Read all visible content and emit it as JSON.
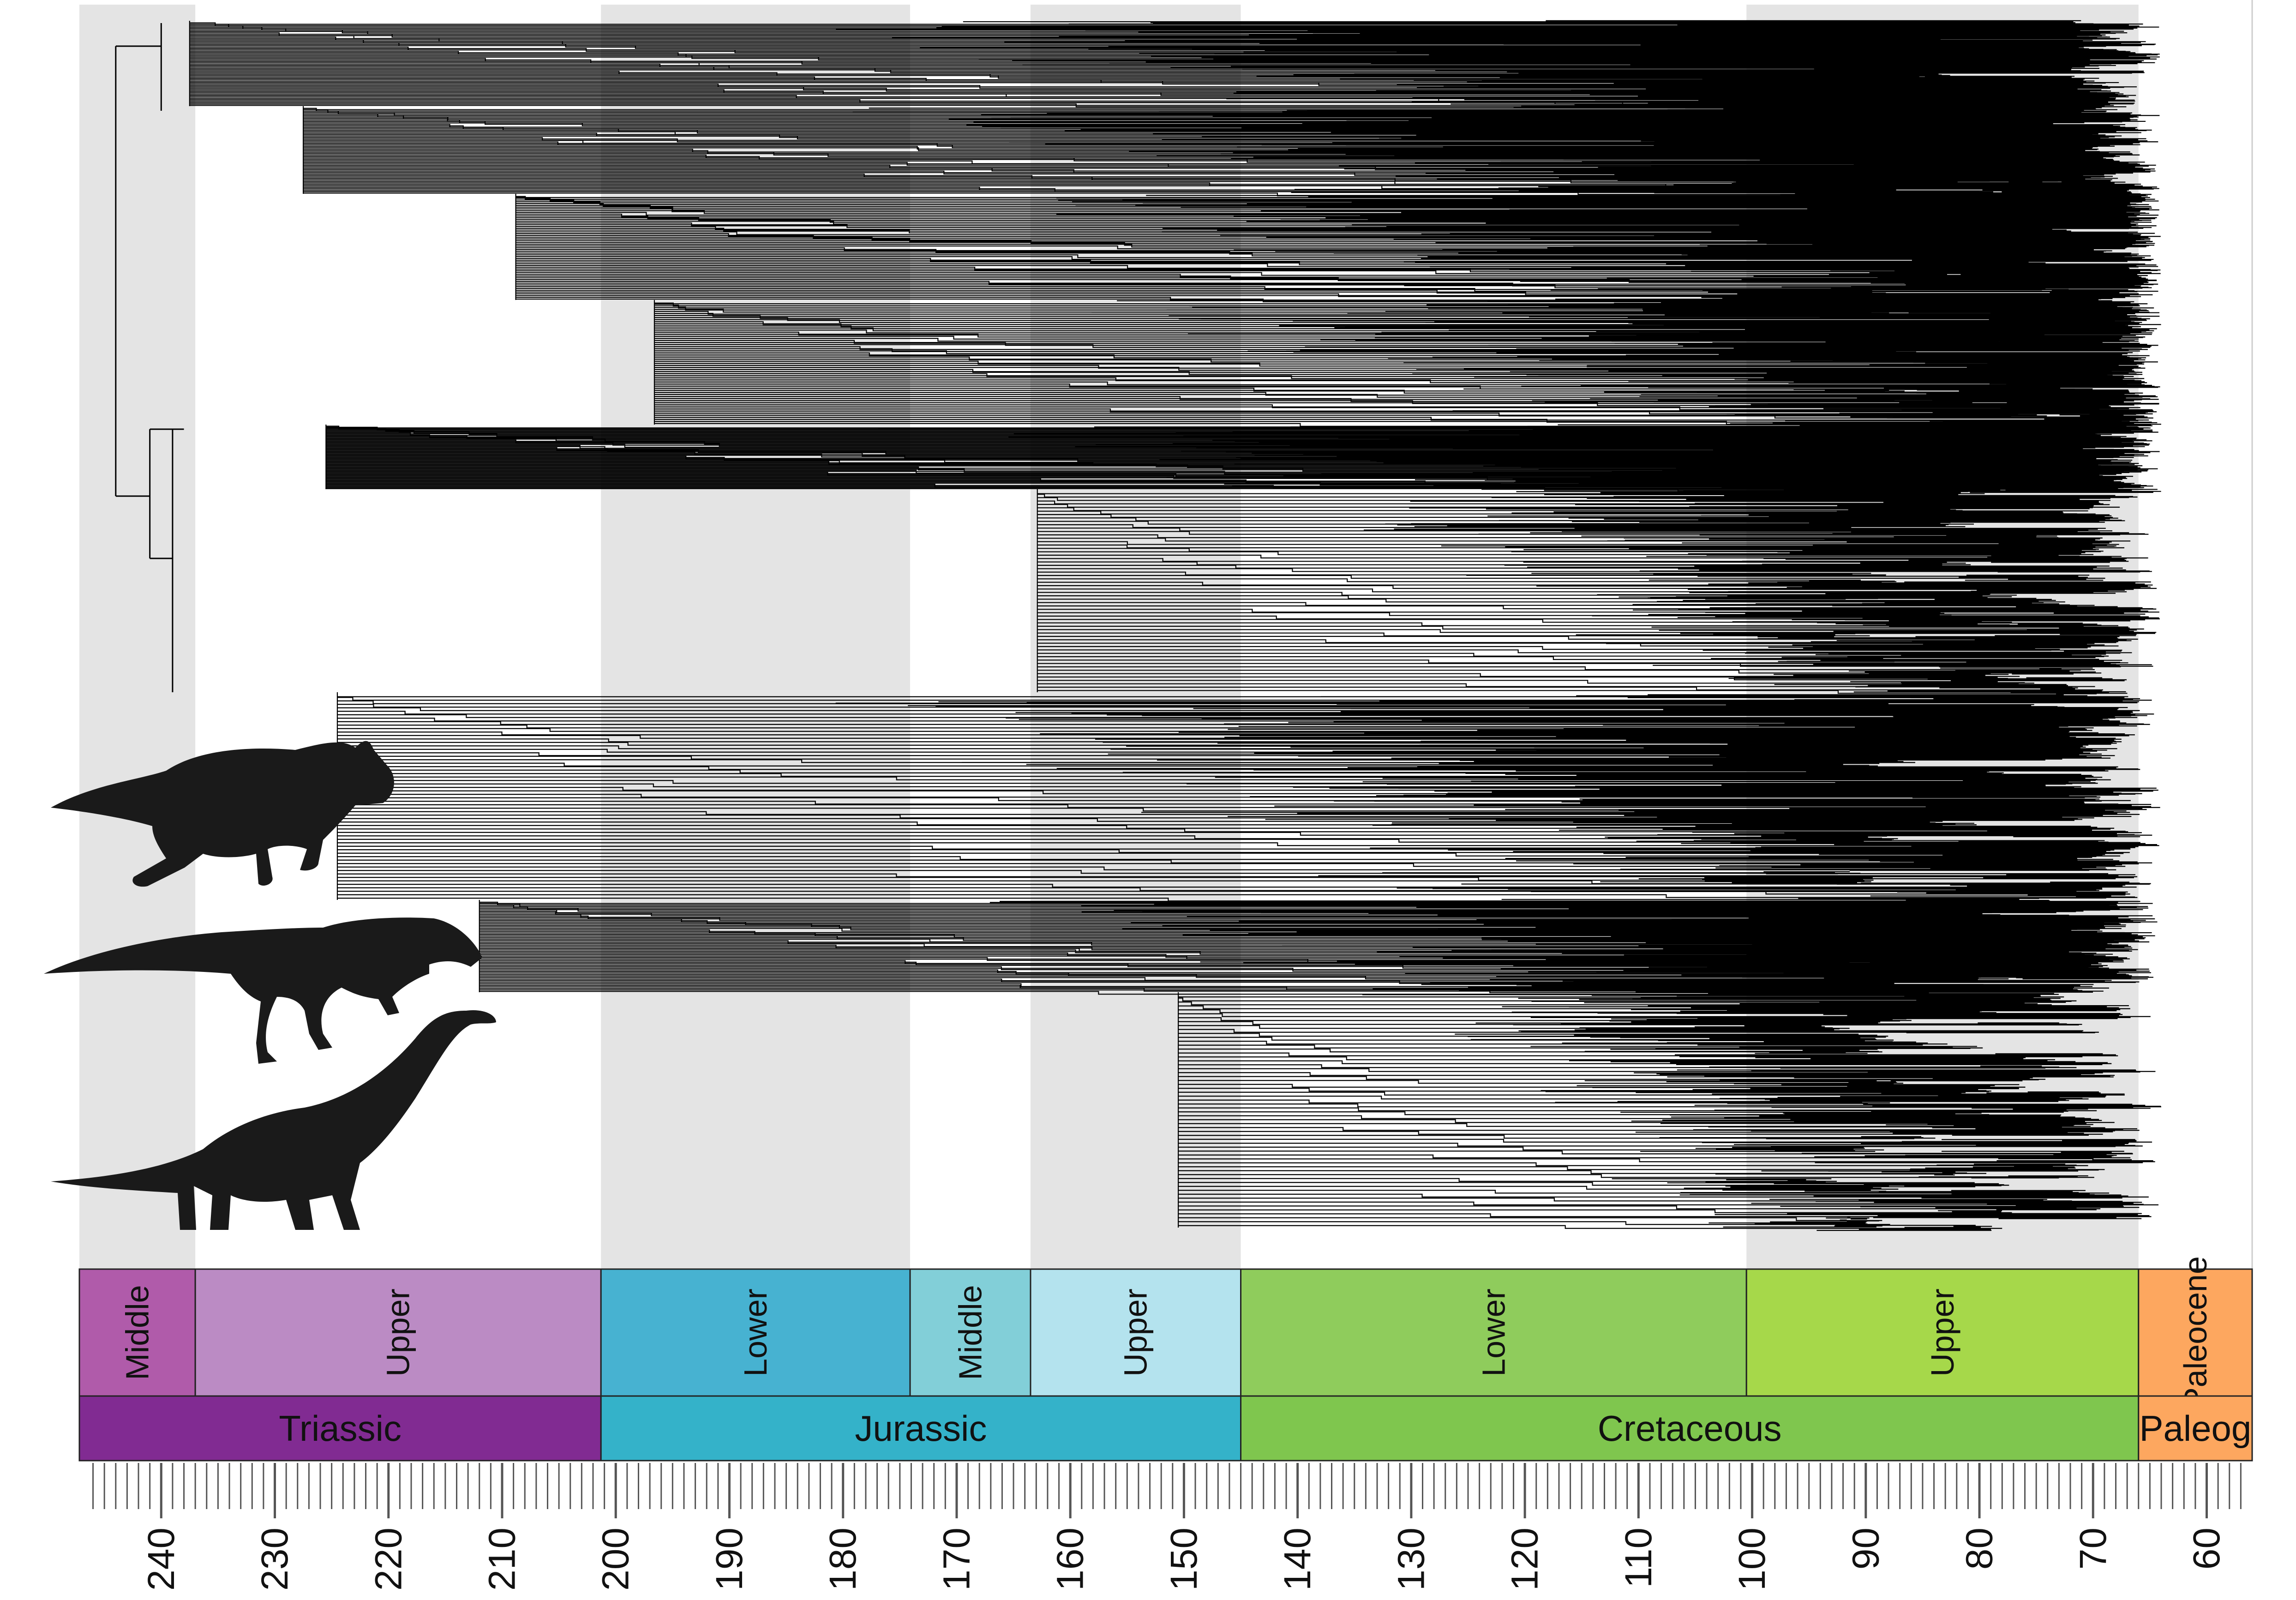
{
  "chart_data": {
    "type": "timescaled-phylogeny",
    "xlabel": "",
    "x_axis": {
      "reversed": true,
      "tick_labels": [
        "240",
        "230",
        "220",
        "210",
        "200",
        "190",
        "180",
        "170",
        "160",
        "150",
        "140",
        "130",
        "120",
        "110",
        "100",
        "90",
        "80",
        "70",
        "60"
      ],
      "ticks": [
        240,
        230,
        220,
        210,
        200,
        190,
        180,
        170,
        160,
        150,
        140,
        130,
        120,
        110,
        100,
        90,
        80,
        70,
        60
      ]
    },
    "xlim": [
      247,
      57
    ],
    "epochs": [
      {
        "label": "Middle",
        "start": 247.2,
        "end": 237.0,
        "color": "#B05BAA",
        "shade": true
      },
      {
        "label": "Upper",
        "start": 237.0,
        "end": 201.3,
        "color": "#BB8BC4",
        "shade": false
      },
      {
        "label": "Lower",
        "start": 201.3,
        "end": 174.1,
        "color": "#47B2D1",
        "shade": true
      },
      {
        "label": "Middle",
        "start": 174.1,
        "end": 163.5,
        "color": "#82CFD8",
        "shade": false
      },
      {
        "label": "Upper",
        "start": 163.5,
        "end": 145.0,
        "color": "#B4E3EE",
        "shade": true
      },
      {
        "label": "Lower",
        "start": 145.0,
        "end": 100.5,
        "color": "#8FCC5C",
        "shade": false
      },
      {
        "label": "Upper",
        "start": 100.5,
        "end": 66.0,
        "color": "#A6D84A",
        "shade": true
      },
      {
        "label": "Paleocene",
        "start": 66.0,
        "end": 56.0,
        "color": "#FDA75F",
        "shade": false
      }
    ],
    "periods": [
      {
        "label": "Triassic",
        "start": 247.2,
        "end": 201.3,
        "color": "#812B92"
      },
      {
        "label": "Jurassic",
        "start": 201.3,
        "end": 145.0,
        "color": "#34B2C9"
      },
      {
        "label": "Cretaceous",
        "start": 145.0,
        "end": 66.0,
        "color": "#7FC64E"
      },
      {
        "label": "Paleog",
        "start": 66.0,
        "end": 56.0,
        "color": "#FDA75F"
      }
    ],
    "clades": [
      {
        "root_age": 237.5,
        "tips_min": 71,
        "tips_max": 64
      },
      {
        "root_age": 227.5,
        "tips_min": 69,
        "tips_max": 64
      },
      {
        "root_age": 208.8,
        "tips_min": 66,
        "tips_max": 64
      },
      {
        "root_age": 196.6,
        "tips_min": 66,
        "tips_max": 64
      },
      {
        "root_age": 225.5,
        "tips_min": 70,
        "tips_max": 64
      },
      {
        "root_age": 162.9,
        "tips_min": 70,
        "tips_max": 64
      },
      {
        "root_age": 224.5,
        "tips_min": 70,
        "tips_max": 64
      },
      {
        "root_age": 212.0,
        "tips_min": 70,
        "tips_max": 64
      },
      {
        "root_age": 150.5,
        "tips_min": 72,
        "tips_max": 64
      }
    ],
    "silhouettes": [
      "ceratopsian-silhouette",
      "theropod-silhouette",
      "sauropod-silhouette"
    ],
    "colors": {
      "shade": "#E4E4E4",
      "branch": "#000000",
      "grid": "#000000"
    }
  }
}
